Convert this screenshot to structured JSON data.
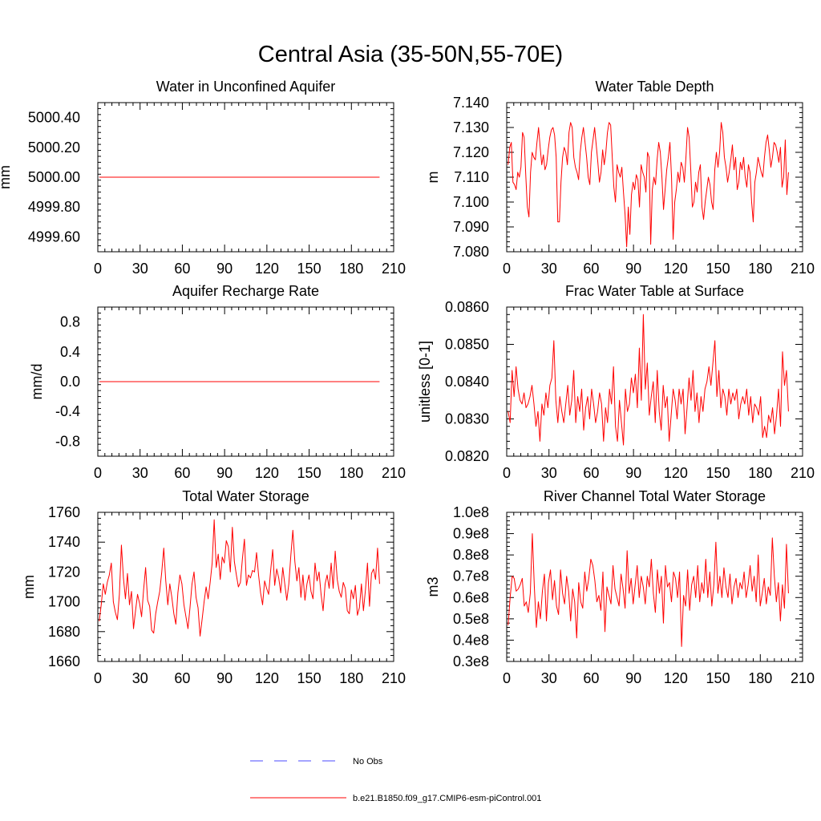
{
  "title": "Central Asia (35-50N,55-70E)",
  "colors": {
    "model": "#ff0000",
    "obs": "#4a4aff",
    "axis": "#000000"
  },
  "legend": [
    {
      "label": "No Obs",
      "style": "dashed",
      "color": "#4a4aff"
    },
    {
      "label": "b.e21.B1850.f09_g17.CMIP6-esm-piControl.001",
      "style": "solid",
      "color": "#ff0000"
    }
  ],
  "chart_data": [
    {
      "type": "line",
      "title": "Water in Unconfined Aquifer",
      "ylabel": "mm",
      "xlim": [
        0,
        210
      ],
      "xticks": [
        0,
        30,
        60,
        90,
        120,
        150,
        180,
        210
      ],
      "ylim": [
        4999.5,
        5000.5
      ],
      "yticks": [
        4999.6,
        4999.8,
        5000.0,
        5000.2,
        5000.4
      ],
      "ytick_labels": [
        "4999.60",
        "4999.80",
        "5000.00",
        "5000.20",
        "5000.40"
      ],
      "series": [
        {
          "values": [
            5000.0,
            5000.0
          ]
        }
      ],
      "x_start": 1,
      "x_end": 200
    },
    {
      "type": "line",
      "title": "Water Table Depth",
      "ylabel": "m",
      "xlim": [
        0,
        210
      ],
      "xticks": [
        0,
        30,
        60,
        90,
        120,
        150,
        180,
        210
      ],
      "ylim": [
        7.08,
        7.14
      ],
      "yticks": [
        7.08,
        7.09,
        7.1,
        7.11,
        7.12,
        7.13,
        7.14
      ],
      "ytick_labels": [
        "7.080",
        "7.090",
        "7.100",
        "7.110",
        "7.120",
        "7.130",
        "7.140"
      ],
      "series": [
        {
          "values": [
            7.115,
            7.122,
            7.124,
            7.108,
            7.107,
            7.105,
            7.112,
            7.11,
            7.114,
            7.128,
            7.126,
            7.111,
            7.098,
            7.094,
            7.112,
            7.12,
            7.118,
            7.117,
            7.124,
            7.13,
            7.122,
            7.115,
            7.119,
            7.113,
            7.115,
            7.121,
            7.126,
            7.129,
            7.13,
            7.127,
            7.118,
            7.092,
            7.092,
            7.108,
            7.118,
            7.122,
            7.12,
            7.115,
            7.128,
            7.132,
            7.13,
            7.118,
            7.114,
            7.112,
            7.109,
            7.12,
            7.126,
            7.13,
            7.124,
            7.118,
            7.11,
            7.107,
            7.12,
            7.125,
            7.13,
            7.123,
            7.116,
            7.108,
            7.112,
            7.121,
            7.115,
            7.12,
            7.128,
            7.132,
            7.131,
            7.118,
            7.106,
            7.1,
            7.115,
            7.112,
            7.11,
            7.114,
            7.104,
            7.095,
            7.082,
            7.098,
            7.087,
            7.103,
            7.108,
            7.105,
            7.111,
            7.109,
            7.098,
            7.115,
            7.112,
            7.11,
            7.104,
            7.12,
            7.118,
            7.083,
            7.105,
            7.11,
            7.107,
            7.117,
            7.124,
            7.12,
            7.11,
            7.097,
            7.105,
            7.113,
            7.118,
            7.124,
            7.11,
            7.085,
            7.1,
            7.105,
            7.112,
            7.108,
            7.116,
            7.114,
            7.108,
            7.118,
            7.13,
            7.126,
            7.113,
            7.098,
            7.1,
            7.108,
            7.104,
            7.112,
            7.115,
            7.098,
            7.093,
            7.1,
            7.105,
            7.11,
            7.107,
            7.1,
            7.097,
            7.113,
            7.12,
            7.114,
            7.12,
            7.132,
            7.128,
            7.118,
            7.114,
            7.108,
            7.112,
            7.117,
            7.123,
            7.113,
            7.118,
            7.105,
            7.108,
            7.116,
            7.113,
            7.118,
            7.11,
            7.106,
            7.115,
            7.112,
            7.1,
            7.092,
            7.108,
            7.112,
            7.118,
            7.115,
            7.112,
            7.11,
            7.118,
            7.124,
            7.127,
            7.121,
            7.114,
            7.118,
            7.124,
            7.123,
            7.12,
            7.116,
            7.122,
            7.106,
            7.11,
            7.125,
            7.103,
            7.112
          ]
        }
      ],
      "x_start": 1,
      "x_end": 200
    },
    {
      "type": "line",
      "title": "Aquifer Recharge Rate",
      "ylabel": "mm/d",
      "xlim": [
        0,
        210
      ],
      "xticks": [
        0,
        30,
        60,
        90,
        120,
        150,
        180,
        210
      ],
      "ylim": [
        -1.0,
        1.0
      ],
      "yticks": [
        -0.8,
        -0.4,
        0.0,
        0.4,
        0.8
      ],
      "ytick_labels": [
        "-0.8",
        "-0.4",
        "0.0",
        "0.4",
        "0.8"
      ],
      "series": [
        {
          "values": [
            0.0,
            0.0
          ]
        }
      ],
      "x_start": 1,
      "x_end": 200
    },
    {
      "type": "line",
      "title": "Frac Water Table at Surface",
      "ylabel": "unitless [0-1]",
      "xlim": [
        0,
        210
      ],
      "xticks": [
        0,
        30,
        60,
        90,
        120,
        150,
        180,
        210
      ],
      "ylim": [
        0.082,
        0.086
      ],
      "yticks": [
        0.082,
        0.083,
        0.084,
        0.085,
        0.086
      ],
      "ytick_labels": [
        "0.0820",
        "0.0830",
        "0.0840",
        "0.0850",
        "0.0860"
      ],
      "series": [
        {
          "values": [
            0.0832,
            0.0829,
            0.0843,
            0.0836,
            0.0844,
            0.0838,
            0.0835,
            0.0834,
            0.0837,
            0.0833,
            0.0834,
            0.0836,
            0.0839,
            0.0834,
            0.0828,
            0.0832,
            0.0824,
            0.0834,
            0.0831,
            0.0837,
            0.0833,
            0.0839,
            0.0841,
            0.0851,
            0.0835,
            0.0829,
            0.0836,
            0.0832,
            0.0829,
            0.0834,
            0.0839,
            0.0831,
            0.0835,
            0.0843,
            0.0829,
            0.0836,
            0.0832,
            0.0838,
            0.0827,
            0.0833,
            0.0836,
            0.083,
            0.0838,
            0.0834,
            0.0829,
            0.0832,
            0.0837,
            0.0834,
            0.0824,
            0.0833,
            0.0829,
            0.0838,
            0.0834,
            0.0844,
            0.0828,
            0.0824,
            0.0835,
            0.0829,
            0.0823,
            0.0838,
            0.0832,
            0.0834,
            0.0841,
            0.0837,
            0.0842,
            0.0833,
            0.0849,
            0.0835,
            0.0858,
            0.0838,
            0.0845,
            0.0831,
            0.0836,
            0.084,
            0.0829,
            0.0843,
            0.0832,
            0.0827,
            0.0839,
            0.0833,
            0.0836,
            0.0824,
            0.0831,
            0.0838,
            0.0835,
            0.083,
            0.0838,
            0.0834,
            0.0838,
            0.0826,
            0.0833,
            0.0841,
            0.0835,
            0.0843,
            0.0832,
            0.0837,
            0.0829,
            0.0836,
            0.0832,
            0.0838,
            0.084,
            0.0844,
            0.0839,
            0.0845,
            0.0851,
            0.0836,
            0.0843,
            0.0833,
            0.0838,
            0.0836,
            0.0831,
            0.0838,
            0.0834,
            0.0837,
            0.0835,
            0.0838,
            0.083,
            0.0834,
            0.0836,
            0.0834,
            0.0838,
            0.0831,
            0.0836,
            0.0829,
            0.0834,
            0.0833,
            0.0831,
            0.0836,
            0.0825,
            0.0828,
            0.0825,
            0.0831,
            0.0829,
            0.0833,
            0.0826,
            0.0831,
            0.0838,
            0.0828,
            0.0848,
            0.0839,
            0.0843,
            0.0832
          ]
        }
      ],
      "x_start": 1,
      "x_end": 200
    },
    {
      "type": "line",
      "title": "Total Water Storage",
      "ylabel": "mm",
      "xlim": [
        0,
        210
      ],
      "xticks": [
        0,
        30,
        60,
        90,
        120,
        150,
        180,
        210
      ],
      "ylim": [
        1660,
        1760
      ],
      "yticks": [
        1660,
        1680,
        1700,
        1720,
        1740,
        1760
      ],
      "ytick_labels": [
        "1660",
        "1680",
        "1700",
        "1720",
        "1740",
        "1760"
      ],
      "series": [
        {
          "values": [
            1687,
            1698,
            1712,
            1705,
            1713,
            1718,
            1726,
            1700,
            1693,
            1688,
            1705,
            1738,
            1716,
            1702,
            1719,
            1698,
            1707,
            1682,
            1694,
            1705,
            1699,
            1690,
            1708,
            1723,
            1701,
            1697,
            1681,
            1679,
            1692,
            1700,
            1707,
            1720,
            1736,
            1714,
            1698,
            1712,
            1703,
            1692,
            1685,
            1706,
            1718,
            1712,
            1698,
            1690,
            1682,
            1696,
            1712,
            1720,
            1703,
            1696,
            1677,
            1688,
            1700,
            1710,
            1702,
            1713,
            1726,
            1755,
            1723,
            1732,
            1715,
            1730,
            1726,
            1741,
            1737,
            1720,
            1750,
            1727,
            1718,
            1710,
            1713,
            1729,
            1742,
            1711,
            1718,
            1716,
            1721,
            1720,
            1733,
            1718,
            1706,
            1698,
            1714,
            1709,
            1705,
            1721,
            1735,
            1711,
            1722,
            1716,
            1706,
            1723,
            1712,
            1701,
            1712,
            1731,
            1748,
            1727,
            1714,
            1723,
            1703,
            1718,
            1701,
            1712,
            1718,
            1707,
            1702,
            1726,
            1714,
            1720,
            1705,
            1694,
            1712,
            1718,
            1709,
            1726,
            1709,
            1734,
            1715,
            1707,
            1703,
            1713,
            1709,
            1694,
            1692,
            1708,
            1702,
            1711,
            1691,
            1696,
            1712,
            1694,
            1708,
            1726,
            1697,
            1719,
            1722,
            1715,
            1736,
            1712
          ]
        }
      ],
      "x_start": 1,
      "x_end": 200
    },
    {
      "type": "line",
      "title": "River Channel Total Water Storage",
      "ylabel": "m3",
      "xlim": [
        0,
        210
      ],
      "xticks": [
        0,
        30,
        60,
        90,
        120,
        150,
        180,
        210
      ],
      "ylim": [
        30000000,
        100000000
      ],
      "yticks": [
        30000000,
        40000000,
        50000000,
        60000000,
        70000000,
        80000000,
        90000000,
        100000000
      ],
      "ytick_labels": [
        "0.3e8",
        "0.4e8",
        "0.5e8",
        "0.6e8",
        "0.7e8",
        "0.8e8",
        "0.9e8",
        "1.0e8"
      ],
      "series": [
        {
          "values": [
            47000000,
            60000000,
            70000000,
            69000000,
            63000000,
            64000000,
            66000000,
            69000000,
            56000000,
            58000000,
            53000000,
            62000000,
            90000000,
            65000000,
            46000000,
            58000000,
            50000000,
            63000000,
            71000000,
            49000000,
            67000000,
            73000000,
            59000000,
            68000000,
            56000000,
            52000000,
            73000000,
            62000000,
            57000000,
            70000000,
            63000000,
            49000000,
            64000000,
            58000000,
            41000000,
            67000000,
            58000000,
            55000000,
            72000000,
            63000000,
            69000000,
            78000000,
            75000000,
            68000000,
            58000000,
            61000000,
            54000000,
            72000000,
            44000000,
            65000000,
            61000000,
            57000000,
            75000000,
            64000000,
            60000000,
            56000000,
            71000000,
            64000000,
            55000000,
            82000000,
            62000000,
            69000000,
            57000000,
            66000000,
            75000000,
            60000000,
            70000000,
            65000000,
            57000000,
            70000000,
            65000000,
            78000000,
            62000000,
            53000000,
            73000000,
            62000000,
            70000000,
            48000000,
            75000000,
            65000000,
            67000000,
            58000000,
            72000000,
            69000000,
            60000000,
            72000000,
            37000000,
            61000000,
            56000000,
            73000000,
            54000000,
            66000000,
            70000000,
            60000000,
            75000000,
            58000000,
            67000000,
            62000000,
            78000000,
            60000000,
            72000000,
            56000000,
            66000000,
            86000000,
            62000000,
            70000000,
            60000000,
            74000000,
            65000000,
            60000000,
            71000000,
            57000000,
            65000000,
            69000000,
            60000000,
            67000000,
            64000000,
            72000000,
            60000000,
            66000000,
            75000000,
            63000000,
            70000000,
            58000000,
            80000000,
            56000000,
            62000000,
            69000000,
            57000000,
            65000000,
            61000000,
            88000000,
            70000000,
            58000000,
            67000000,
            49000000,
            66000000,
            55000000,
            85000000,
            62000000
          ]
        }
      ],
      "x_start": 1,
      "x_end": 200
    }
  ]
}
